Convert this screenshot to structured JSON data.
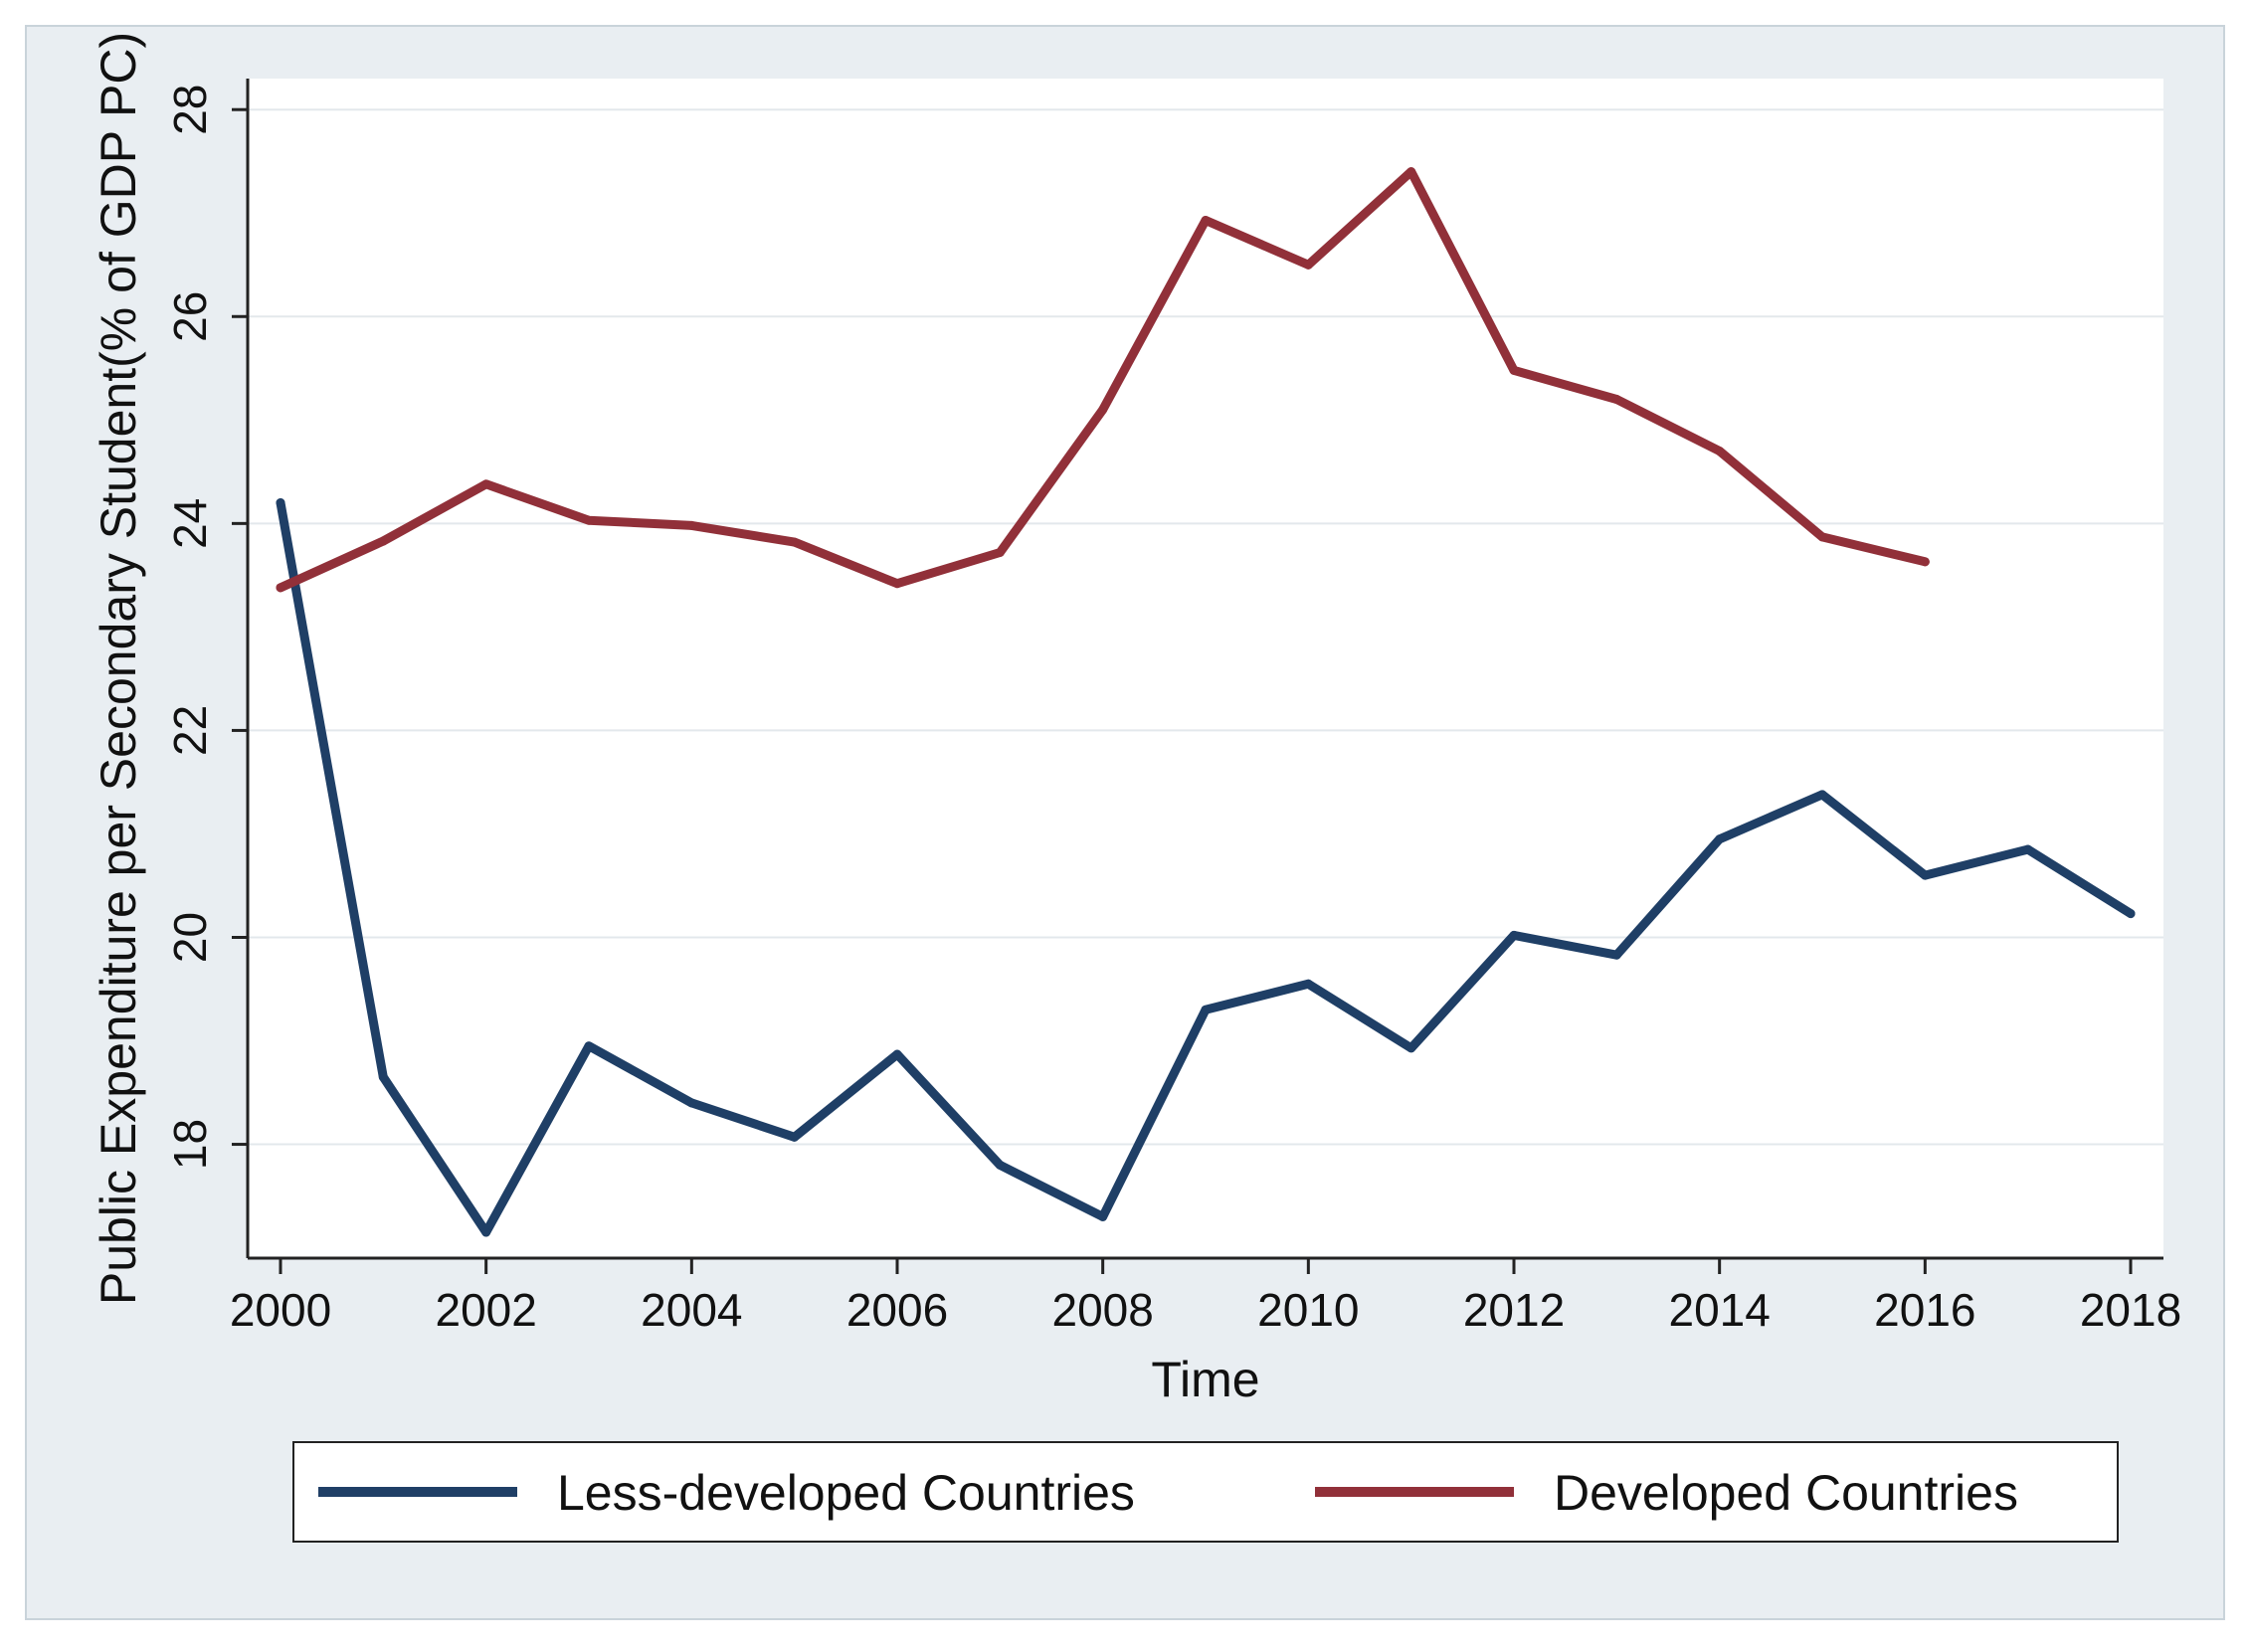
{
  "chart_data": {
    "type": "line",
    "title": "",
    "xlabel": "Time",
    "ylabel": "Public Expenditure per Secondary Student(% of GDP PC)",
    "xlim": [
      2000,
      2018
    ],
    "ylim": [
      16.9,
      28.3
    ],
    "x_ticks": [
      2000,
      2002,
      2004,
      2006,
      2008,
      2010,
      2012,
      2014,
      2016,
      2018
    ],
    "y_ticks": [
      18,
      20,
      22,
      24,
      26,
      28
    ],
    "grid": true,
    "legend_position": "bottom",
    "series": [
      {
        "name": "Less-developed Countries",
        "color": "#1f3f66",
        "x": [
          2000,
          2001,
          2002,
          2003,
          2004,
          2005,
          2006,
          2007,
          2008,
          2009,
          2010,
          2011,
          2012,
          2013,
          2014,
          2015,
          2016,
          2017,
          2018
        ],
        "y": [
          24.2,
          18.65,
          17.15,
          18.95,
          18.4,
          18.07,
          18.87,
          17.8,
          17.3,
          19.3,
          19.55,
          18.93,
          20.02,
          19.83,
          20.95,
          21.38,
          20.6,
          20.85,
          20.23
        ]
      },
      {
        "name": "Developed Countries",
        "color": "#913039",
        "x": [
          2000,
          2001,
          2002,
          2003,
          2004,
          2005,
          2006,
          2007,
          2008,
          2009,
          2010,
          2011,
          2012,
          2013,
          2014,
          2015,
          2016
        ],
        "y": [
          23.38,
          23.83,
          24.38,
          24.03,
          23.98,
          23.82,
          23.42,
          23.72,
          25.1,
          26.93,
          26.5,
          27.4,
          25.48,
          25.2,
          24.7,
          23.87,
          23.63
        ]
      }
    ]
  }
}
